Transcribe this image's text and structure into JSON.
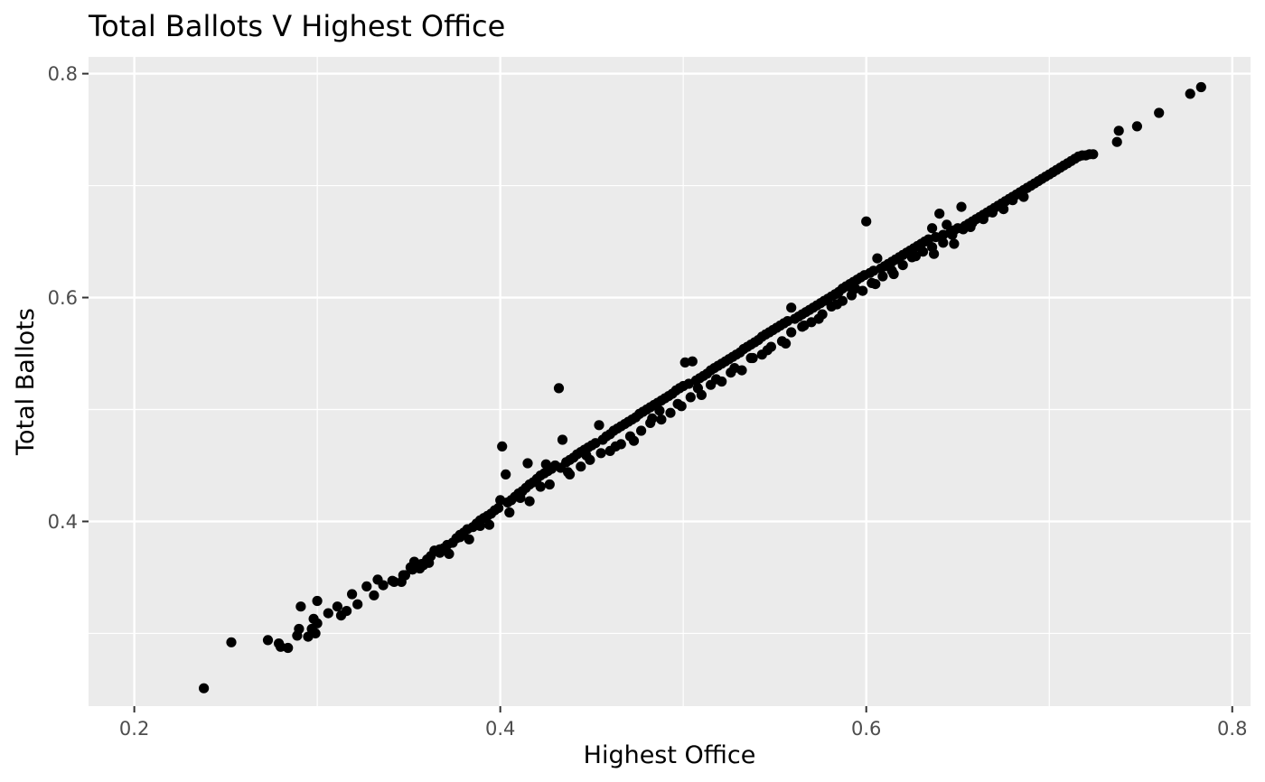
{
  "chart_data": {
    "type": "scatter",
    "title": "Total Ballots V Highest Office",
    "xlabel": "Highest Office",
    "ylabel": "Total Ballots",
    "xlim": [
      0.175,
      0.81
    ],
    "ylim": [
      0.235,
      0.815
    ],
    "x_ticks": [
      0.2,
      0.4,
      0.6,
      0.8
    ],
    "x_tick_labels": [
      "0.2",
      "0.4",
      "0.6",
      "0.8"
    ],
    "y_ticks": [
      0.4,
      0.6,
      0.8
    ],
    "y_tick_labels": [
      "0.4",
      "0.6",
      "0.8"
    ],
    "x_minor": [
      0.3,
      0.5,
      0.7
    ],
    "y_minor": [
      0.3,
      0.5,
      0.7
    ],
    "grid": true,
    "panel_color": "#EBEBEB",
    "point_color": "#000000",
    "points": [
      [
        0.238,
        0.251
      ],
      [
        0.253,
        0.292
      ],
      [
        0.273,
        0.294
      ],
      [
        0.279,
        0.291
      ],
      [
        0.284,
        0.287
      ],
      [
        0.28,
        0.288
      ],
      [
        0.289,
        0.298
      ],
      [
        0.29,
        0.304
      ],
      [
        0.291,
        0.324
      ],
      [
        0.295,
        0.297
      ],
      [
        0.297,
        0.304
      ],
      [
        0.299,
        0.3
      ],
      [
        0.3,
        0.309
      ],
      [
        0.298,
        0.313
      ],
      [
        0.3,
        0.329
      ],
      [
        0.306,
        0.318
      ],
      [
        0.311,
        0.324
      ],
      [
        0.313,
        0.316
      ],
      [
        0.316,
        0.32
      ],
      [
        0.319,
        0.335
      ],
      [
        0.322,
        0.326
      ],
      [
        0.327,
        0.342
      ],
      [
        0.331,
        0.334
      ],
      [
        0.333,
        0.348
      ],
      [
        0.336,
        0.343
      ],
      [
        0.341,
        0.347
      ],
      [
        0.346,
        0.346
      ],
      [
        0.348,
        0.352
      ],
      [
        0.351,
        0.359
      ],
      [
        0.353,
        0.364
      ],
      [
        0.356,
        0.358
      ],
      [
        0.358,
        0.361
      ],
      [
        0.36,
        0.366
      ],
      [
        0.362,
        0.369
      ],
      [
        0.364,
        0.374
      ],
      [
        0.367,
        0.372
      ],
      [
        0.369,
        0.376
      ],
      [
        0.371,
        0.379
      ],
      [
        0.374,
        0.381
      ],
      [
        0.376,
        0.385
      ],
      [
        0.378,
        0.388
      ],
      [
        0.38,
        0.39
      ],
      [
        0.382,
        0.393
      ],
      [
        0.385,
        0.395
      ],
      [
        0.387,
        0.398
      ],
      [
        0.389,
        0.401
      ],
      [
        0.391,
        0.403
      ],
      [
        0.393,
        0.405
      ],
      [
        0.395,
        0.407
      ],
      [
        0.397,
        0.41
      ],
      [
        0.399,
        0.412
      ],
      [
        0.401,
        0.467
      ],
      [
        0.403,
        0.442
      ],
      [
        0.404,
        0.417
      ],
      [
        0.406,
        0.419
      ],
      [
        0.408,
        0.422
      ],
      [
        0.41,
        0.425
      ],
      [
        0.412,
        0.427
      ],
      [
        0.414,
        0.43
      ],
      [
        0.416,
        0.433
      ],
      [
        0.418,
        0.435
      ],
      [
        0.42,
        0.438
      ],
      [
        0.422,
        0.441
      ],
      [
        0.424,
        0.443
      ],
      [
        0.426,
        0.445
      ],
      [
        0.428,
        0.447
      ],
      [
        0.43,
        0.45
      ],
      [
        0.432,
        0.519
      ],
      [
        0.434,
        0.473
      ],
      [
        0.436,
        0.453
      ],
      [
        0.438,
        0.455
      ],
      [
        0.44,
        0.457
      ],
      [
        0.442,
        0.46
      ],
      [
        0.444,
        0.462
      ],
      [
        0.446,
        0.464
      ],
      [
        0.448,
        0.466
      ],
      [
        0.45,
        0.468
      ],
      [
        0.452,
        0.47
      ],
      [
        0.454,
        0.486
      ],
      [
        0.456,
        0.473
      ],
      [
        0.458,
        0.476
      ],
      [
        0.46,
        0.478
      ],
      [
        0.462,
        0.481
      ],
      [
        0.464,
        0.483
      ],
      [
        0.466,
        0.485
      ],
      [
        0.468,
        0.487
      ],
      [
        0.47,
        0.489
      ],
      [
        0.472,
        0.491
      ],
      [
        0.474,
        0.493
      ],
      [
        0.476,
        0.496
      ],
      [
        0.478,
        0.498
      ],
      [
        0.48,
        0.5
      ],
      [
        0.482,
        0.502
      ],
      [
        0.484,
        0.504
      ],
      [
        0.486,
        0.506
      ],
      [
        0.488,
        0.508
      ],
      [
        0.49,
        0.51
      ],
      [
        0.492,
        0.512
      ],
      [
        0.494,
        0.514
      ],
      [
        0.496,
        0.517
      ],
      [
        0.498,
        0.519
      ],
      [
        0.5,
        0.521
      ],
      [
        0.501,
        0.542
      ],
      [
        0.503,
        0.523
      ],
      [
        0.505,
        0.543
      ],
      [
        0.507,
        0.526
      ],
      [
        0.509,
        0.528
      ],
      [
        0.511,
        0.53
      ],
      [
        0.513,
        0.532
      ],
      [
        0.515,
        0.535
      ],
      [
        0.517,
        0.537
      ],
      [
        0.519,
        0.539
      ],
      [
        0.521,
        0.541
      ],
      [
        0.523,
        0.543
      ],
      [
        0.525,
        0.545
      ],
      [
        0.527,
        0.547
      ],
      [
        0.529,
        0.549
      ],
      [
        0.531,
        0.551
      ],
      [
        0.533,
        0.554
      ],
      [
        0.535,
        0.556
      ],
      [
        0.537,
        0.558
      ],
      [
        0.539,
        0.56
      ],
      [
        0.541,
        0.562
      ],
      [
        0.543,
        0.565
      ],
      [
        0.545,
        0.567
      ],
      [
        0.547,
        0.569
      ],
      [
        0.549,
        0.571
      ],
      [
        0.551,
        0.573
      ],
      [
        0.553,
        0.575
      ],
      [
        0.555,
        0.577
      ],
      [
        0.557,
        0.579
      ],
      [
        0.559,
        0.591
      ],
      [
        0.561,
        0.581
      ],
      [
        0.563,
        0.583
      ],
      [
        0.565,
        0.585
      ],
      [
        0.567,
        0.587
      ],
      [
        0.569,
        0.589
      ],
      [
        0.571,
        0.591
      ],
      [
        0.573,
        0.593
      ],
      [
        0.575,
        0.595
      ],
      [
        0.577,
        0.597
      ],
      [
        0.579,
        0.599
      ],
      [
        0.581,
        0.601
      ],
      [
        0.583,
        0.603
      ],
      [
        0.585,
        0.605
      ],
      [
        0.587,
        0.608
      ],
      [
        0.589,
        0.61
      ],
      [
        0.591,
        0.612
      ],
      [
        0.593,
        0.614
      ],
      [
        0.595,
        0.616
      ],
      [
        0.597,
        0.618
      ],
      [
        0.599,
        0.62
      ],
      [
        0.6,
        0.668
      ],
      [
        0.602,
        0.622
      ],
      [
        0.604,
        0.624
      ],
      [
        0.606,
        0.635
      ],
      [
        0.608,
        0.626
      ],
      [
        0.61,
        0.628
      ],
      [
        0.612,
        0.63
      ],
      [
        0.614,
        0.632
      ],
      [
        0.616,
        0.634
      ],
      [
        0.618,
        0.636
      ],
      [
        0.62,
        0.638
      ],
      [
        0.622,
        0.64
      ],
      [
        0.624,
        0.642
      ],
      [
        0.626,
        0.644
      ],
      [
        0.628,
        0.646
      ],
      [
        0.63,
        0.648
      ],
      [
        0.632,
        0.65
      ],
      [
        0.634,
        0.652
      ],
      [
        0.636,
        0.662
      ],
      [
        0.638,
        0.654
      ],
      [
        0.64,
        0.675
      ],
      [
        0.642,
        0.656
      ],
      [
        0.644,
        0.665
      ],
      [
        0.646,
        0.658
      ],
      [
        0.648,
        0.66
      ],
      [
        0.65,
        0.662
      ],
      [
        0.652,
        0.681
      ],
      [
        0.654,
        0.664
      ],
      [
        0.656,
        0.666
      ],
      [
        0.658,
        0.668
      ],
      [
        0.66,
        0.67
      ],
      [
        0.662,
        0.672
      ],
      [
        0.664,
        0.674
      ],
      [
        0.666,
        0.676
      ],
      [
        0.668,
        0.678
      ],
      [
        0.67,
        0.68
      ],
      [
        0.672,
        0.682
      ],
      [
        0.674,
        0.684
      ],
      [
        0.676,
        0.686
      ],
      [
        0.678,
        0.688
      ],
      [
        0.68,
        0.69
      ],
      [
        0.682,
        0.692
      ],
      [
        0.684,
        0.694
      ],
      [
        0.686,
        0.696
      ],
      [
        0.688,
        0.698
      ],
      [
        0.69,
        0.7
      ],
      [
        0.692,
        0.702
      ],
      [
        0.694,
        0.704
      ],
      [
        0.696,
        0.706
      ],
      [
        0.698,
        0.708
      ],
      [
        0.7,
        0.71
      ],
      [
        0.702,
        0.712
      ],
      [
        0.704,
        0.714
      ],
      [
        0.706,
        0.716
      ],
      [
        0.708,
        0.718
      ],
      [
        0.71,
        0.72
      ],
      [
        0.712,
        0.722
      ],
      [
        0.714,
        0.724
      ],
      [
        0.716,
        0.726
      ],
      [
        0.718,
        0.727
      ],
      [
        0.72,
        0.727
      ],
      [
        0.722,
        0.728
      ],
      [
        0.724,
        0.728
      ],
      [
        0.737,
        0.739
      ],
      [
        0.738,
        0.749
      ],
      [
        0.748,
        0.753
      ],
      [
        0.76,
        0.765
      ],
      [
        0.777,
        0.782
      ],
      [
        0.783,
        0.788
      ],
      [
        0.361,
        0.363
      ],
      [
        0.372,
        0.371
      ],
      [
        0.383,
        0.384
      ],
      [
        0.394,
        0.397
      ],
      [
        0.405,
        0.408
      ],
      [
        0.416,
        0.418
      ],
      [
        0.427,
        0.433
      ],
      [
        0.438,
        0.442
      ],
      [
        0.449,
        0.455
      ],
      [
        0.46,
        0.463
      ],
      [
        0.471,
        0.476
      ],
      [
        0.482,
        0.488
      ],
      [
        0.493,
        0.497
      ],
      [
        0.504,
        0.511
      ],
      [
        0.515,
        0.522
      ],
      [
        0.526,
        0.533
      ],
      [
        0.537,
        0.546
      ],
      [
        0.548,
        0.556
      ],
      [
        0.559,
        0.569
      ],
      [
        0.57,
        0.578
      ],
      [
        0.581,
        0.592
      ],
      [
        0.592,
        0.602
      ],
      [
        0.603,
        0.613
      ],
      [
        0.614,
        0.624
      ],
      [
        0.625,
        0.636
      ],
      [
        0.636,
        0.645
      ],
      [
        0.647,
        0.656
      ],
      [
        0.658,
        0.667
      ],
      [
        0.669,
        0.676
      ],
      [
        0.68,
        0.687
      ],
      [
        0.367,
        0.375
      ],
      [
        0.378,
        0.386
      ],
      [
        0.389,
        0.396
      ],
      [
        0.4,
        0.419
      ],
      [
        0.411,
        0.421
      ],
      [
        0.422,
        0.431
      ],
      [
        0.433,
        0.448
      ],
      [
        0.444,
        0.449
      ],
      [
        0.455,
        0.461
      ],
      [
        0.466,
        0.469
      ],
      [
        0.477,
        0.481
      ],
      [
        0.488,
        0.491
      ],
      [
        0.499,
        0.503
      ],
      [
        0.51,
        0.513
      ],
      [
        0.521,
        0.525
      ],
      [
        0.532,
        0.535
      ],
      [
        0.543,
        0.549
      ],
      [
        0.554,
        0.561
      ],
      [
        0.565,
        0.574
      ],
      [
        0.576,
        0.585
      ],
      [
        0.587,
        0.597
      ],
      [
        0.598,
        0.606
      ],
      [
        0.609,
        0.619
      ],
      [
        0.62,
        0.629
      ],
      [
        0.631,
        0.641
      ],
      [
        0.642,
        0.649
      ],
      [
        0.653,
        0.661
      ],
      [
        0.664,
        0.67
      ],
      [
        0.675,
        0.679
      ],
      [
        0.686,
        0.69
      ],
      [
        0.342,
        0.346
      ],
      [
        0.347,
        0.352
      ],
      [
        0.352,
        0.357
      ],
      [
        0.357,
        0.362
      ],
      [
        0.415,
        0.452
      ],
      [
        0.425,
        0.451
      ],
      [
        0.437,
        0.444
      ],
      [
        0.447,
        0.459
      ],
      [
        0.463,
        0.467
      ],
      [
        0.473,
        0.472
      ],
      [
        0.483,
        0.492
      ],
      [
        0.487,
        0.499
      ],
      [
        0.497,
        0.505
      ],
      [
        0.508,
        0.519
      ],
      [
        0.518,
        0.527
      ],
      [
        0.528,
        0.537
      ],
      [
        0.538,
        0.546
      ],
      [
        0.546,
        0.553
      ],
      [
        0.556,
        0.559
      ],
      [
        0.566,
        0.575
      ],
      [
        0.574,
        0.581
      ],
      [
        0.584,
        0.594
      ],
      [
        0.594,
        0.608
      ],
      [
        0.59,
        0.61
      ],
      [
        0.605,
        0.612
      ],
      [
        0.615,
        0.621
      ],
      [
        0.627,
        0.637
      ],
      [
        0.637,
        0.639
      ],
      [
        0.648,
        0.648
      ],
      [
        0.657,
        0.663
      ]
    ]
  }
}
